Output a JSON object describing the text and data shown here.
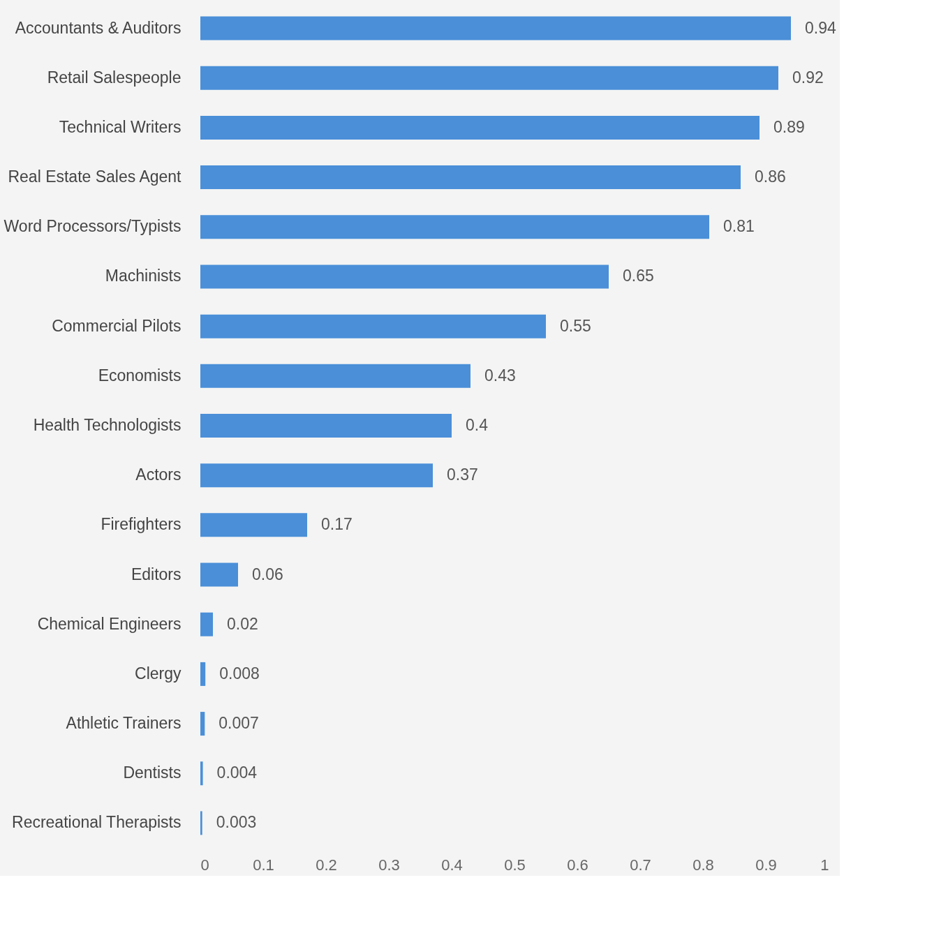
{
  "chart_data": {
    "type": "bar",
    "orientation": "horizontal",
    "categories": [
      "Accountants & Auditors",
      "Retail Salespeople",
      "Technical Writers",
      "Real Estate Sales Agent",
      "Word Processors/Typists",
      "Machinists",
      "Commercial Pilots",
      "Economists",
      "Health Technologists",
      "Actors",
      "Firefighters",
      "Editors",
      "Chemical Engineers",
      "Clergy",
      "Athletic Trainers",
      "Dentists",
      "Recreational Therapists"
    ],
    "values": [
      0.94,
      0.92,
      0.89,
      0.86,
      0.81,
      0.65,
      0.55,
      0.43,
      0.4,
      0.37,
      0.17,
      0.06,
      0.02,
      0.008,
      0.007,
      0.004,
      0.003
    ],
    "color": "#4a8fd8",
    "xlim": [
      0,
      1
    ],
    "xticks": [
      0,
      0.1,
      0.2,
      0.3,
      0.4,
      0.5,
      0.6,
      0.7,
      0.8,
      0.9,
      1
    ],
    "data_labels": true,
    "grid": false
  }
}
